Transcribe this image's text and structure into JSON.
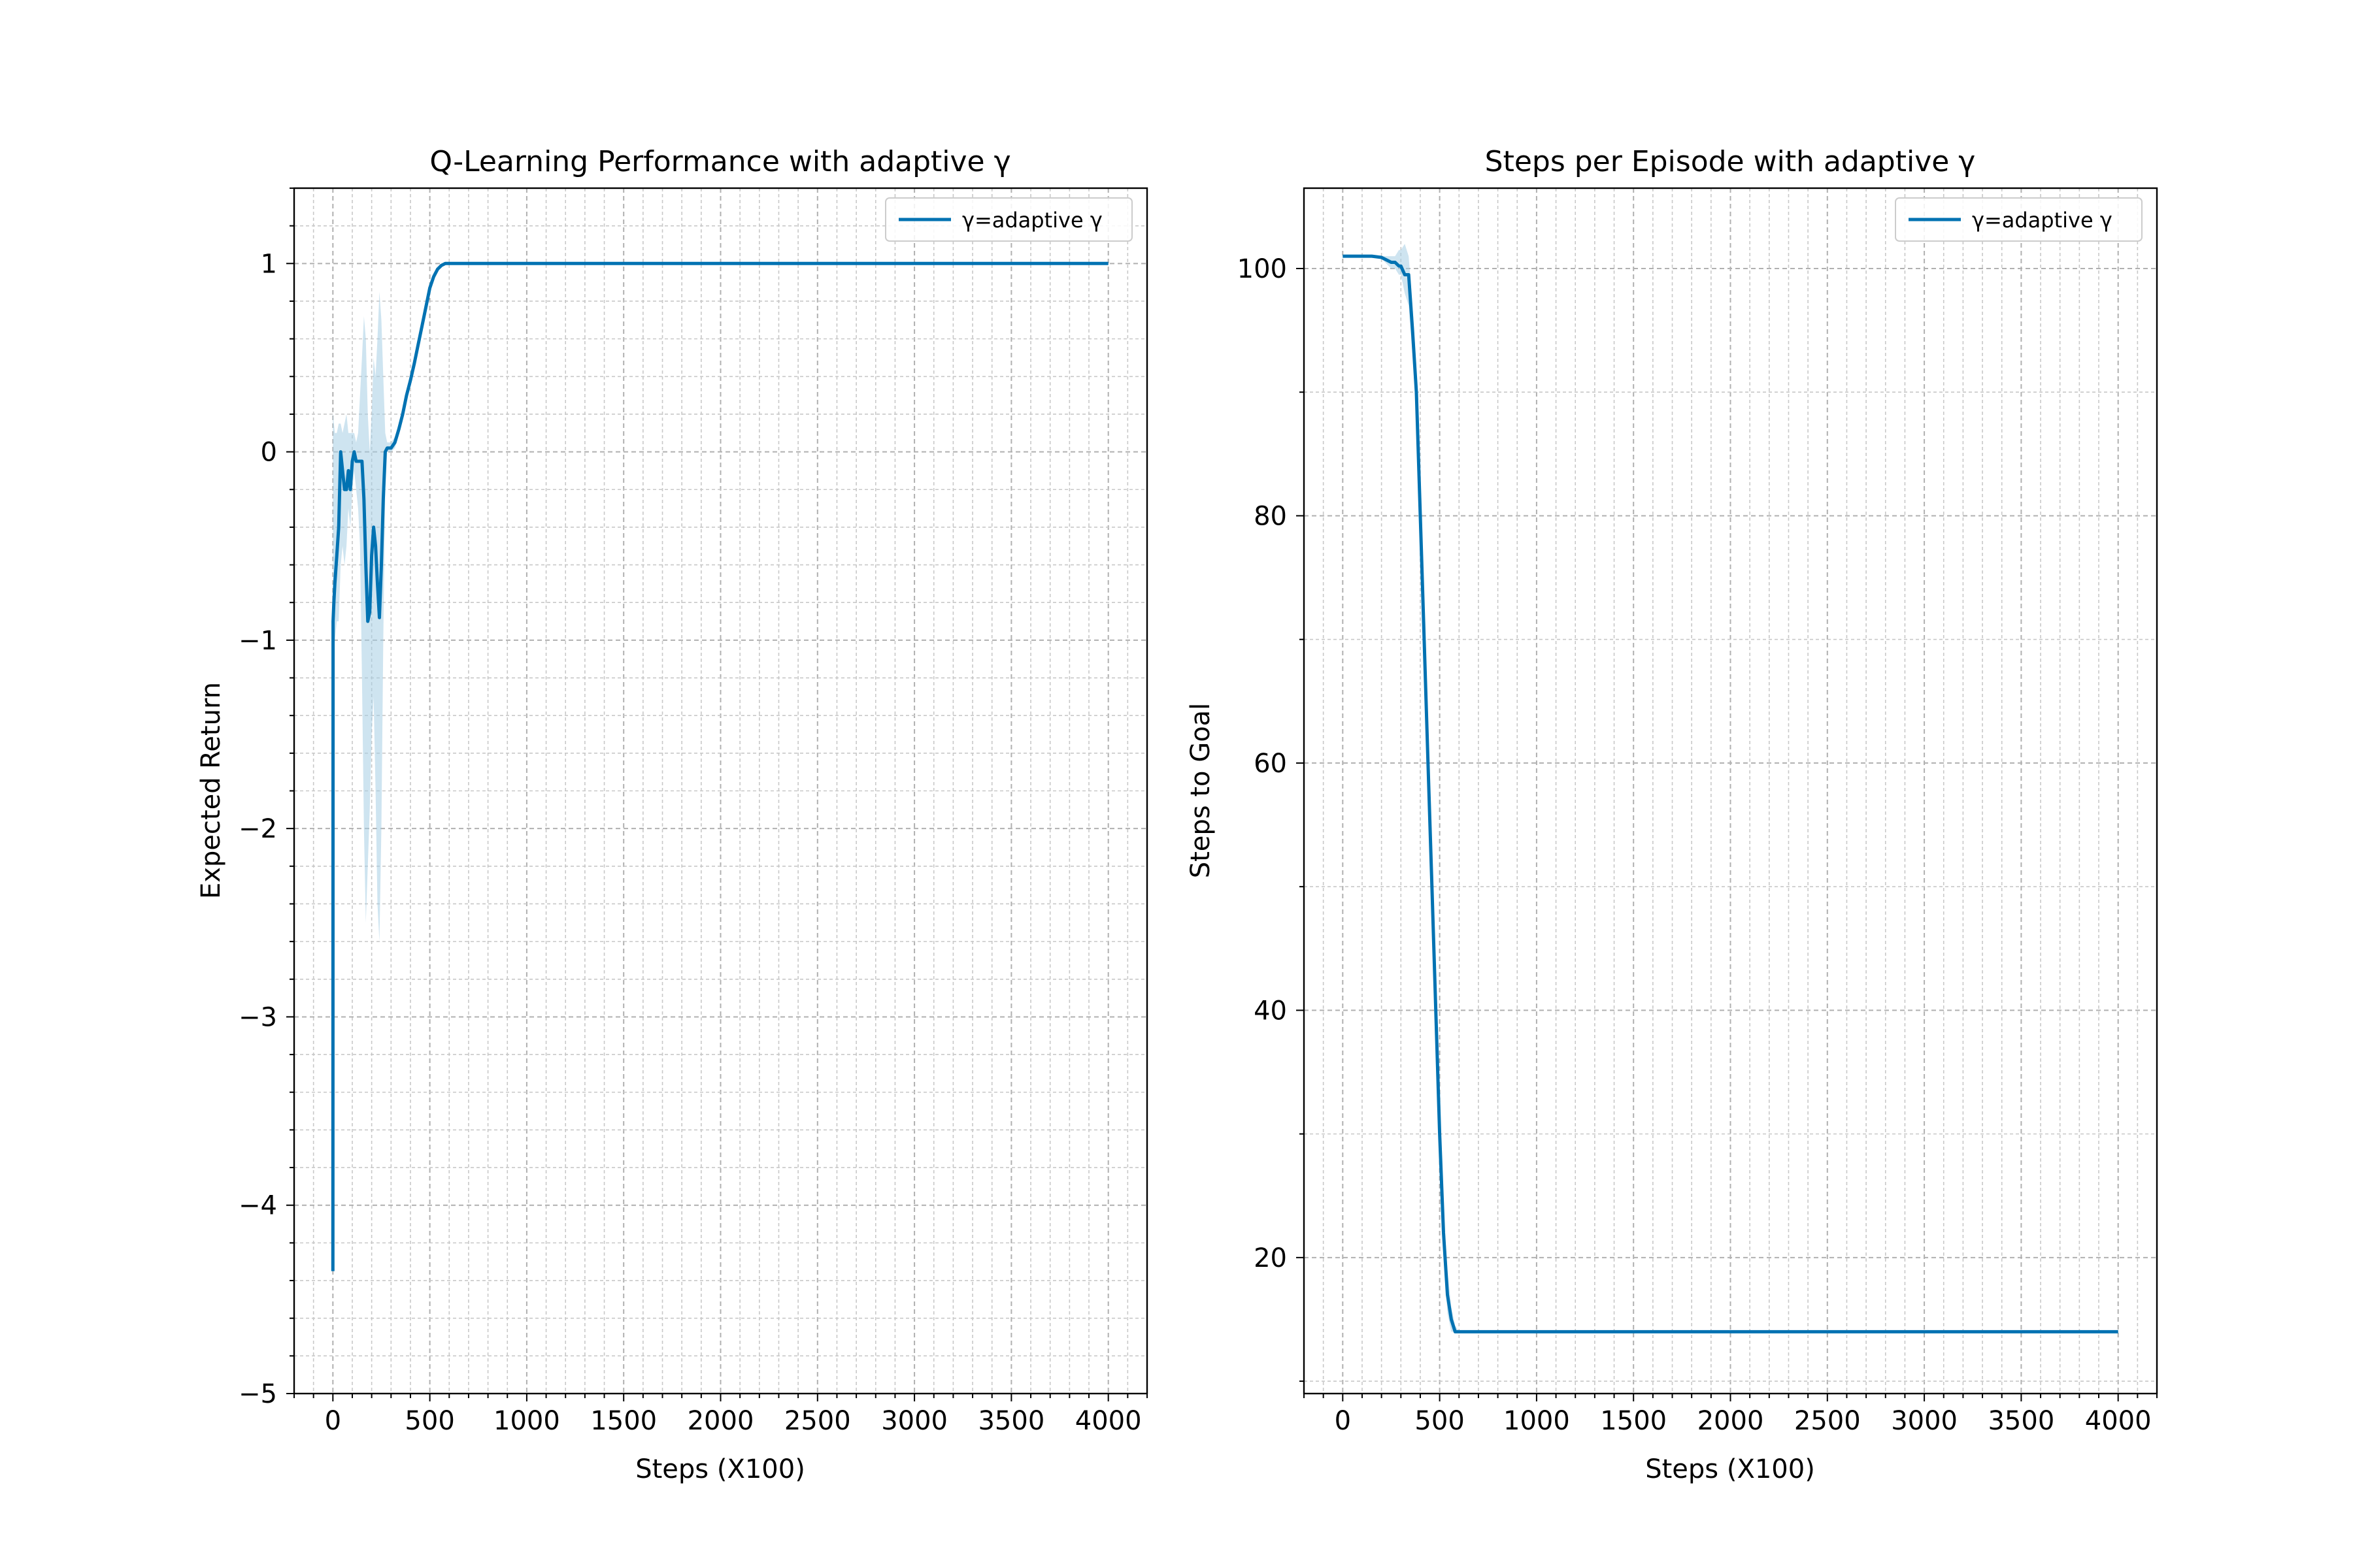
{
  "chart_data": [
    {
      "type": "line",
      "title": "Q-Learning Performance with adaptive γ",
      "xlabel": "Steps (X100)",
      "ylabel": "Expected Return",
      "xlim": [
        -200,
        4200
      ],
      "ylim": [
        -5,
        1.4
      ],
      "xticks": [
        "0",
        "500",
        "1000",
        "1500",
        "2000",
        "2500",
        "3000",
        "3500",
        "4000"
      ],
      "xtick_values": [
        0,
        500,
        1000,
        1500,
        2000,
        2500,
        3000,
        3500,
        4000
      ],
      "yticks": [
        "−5",
        "−4",
        "−3",
        "−2",
        "−1",
        "0",
        "1"
      ],
      "ytick_values": [
        -5,
        -4,
        -3,
        -2,
        -1,
        0,
        1
      ],
      "grid": true,
      "minor_ticks": true,
      "legend_position": "top-right",
      "colors": {
        "line": "#0072b2",
        "band": "#a6cee3"
      },
      "series": [
        {
          "name": "γ=adaptive γ",
          "x": [
            0,
            1,
            5,
            10,
            20,
            30,
            40,
            50,
            60,
            70,
            80,
            90,
            100,
            110,
            120,
            130,
            140,
            150,
            160,
            170,
            180,
            190,
            200,
            210,
            220,
            230,
            240,
            250,
            260,
            270,
            280,
            290,
            300,
            320,
            340,
            360,
            380,
            400,
            420,
            440,
            460,
            480,
            500,
            520,
            540,
            560,
            580,
            600,
            650,
            700,
            800,
            1000,
            1500,
            2000,
            2500,
            3000,
            3500,
            4000
          ],
          "y": [
            -4.35,
            -0.9,
            -0.8,
            -0.7,
            -0.55,
            -0.4,
            0.0,
            -0.1,
            -0.2,
            -0.2,
            -0.1,
            -0.2,
            -0.05,
            0.0,
            -0.05,
            -0.05,
            -0.05,
            -0.05,
            -0.25,
            -0.6,
            -0.9,
            -0.85,
            -0.55,
            -0.4,
            -0.5,
            -0.7,
            -0.88,
            -0.6,
            -0.25,
            0.0,
            0.02,
            0.02,
            0.02,
            0.05,
            0.12,
            0.2,
            0.3,
            0.38,
            0.47,
            0.57,
            0.67,
            0.77,
            0.87,
            0.93,
            0.97,
            0.99,
            1.0,
            1.0,
            1.0,
            1.0,
            1.0,
            1.0,
            1.0,
            1.0,
            1.0,
            1.0,
            1.0,
            1.0
          ],
          "band_upper": [
            0.2,
            0.2,
            0.15,
            0.1,
            0.1,
            0.15,
            0.15,
            0.1,
            0.15,
            0.2,
            0.1,
            0.1,
            0.1,
            0.1,
            0.05,
            0.1,
            0.3,
            0.5,
            0.72,
            0.6,
            0.2,
            0.0,
            0.2,
            0.5,
            0.4,
            0.6,
            0.85,
            0.7,
            0.4,
            0.1,
            0.05,
            0.05,
            0.05,
            0.08,
            0.15,
            0.23,
            0.33,
            0.41,
            0.5,
            0.6,
            0.7,
            0.8,
            0.9,
            0.95,
            0.98,
            1.0,
            1.0,
            1.0,
            1.0,
            1.0,
            1.0,
            1.0,
            1.0,
            1.0,
            1.0,
            1.0,
            1.0,
            1.0
          ],
          "band_lower": [
            -4.35,
            -1.0,
            -1.0,
            -1.0,
            -0.9,
            -0.9,
            -0.6,
            -0.5,
            -0.6,
            -0.5,
            -0.3,
            -0.4,
            -0.2,
            -0.1,
            -0.2,
            -0.3,
            -0.5,
            -1.2,
            -2.0,
            -2.5,
            -2.2,
            -1.9,
            -1.5,
            -1.3,
            -1.8,
            -2.4,
            -2.6,
            -2.0,
            -1.0,
            -0.2,
            0.0,
            0.0,
            0.0,
            0.02,
            0.09,
            0.17,
            0.27,
            0.35,
            0.44,
            0.54,
            0.64,
            0.74,
            0.84,
            0.91,
            0.96,
            0.98,
            1.0,
            1.0,
            1.0,
            1.0,
            1.0,
            1.0,
            1.0,
            1.0,
            1.0,
            1.0,
            1.0,
            1.0
          ]
        }
      ]
    },
    {
      "type": "line",
      "title": "Steps per Episode with adaptive γ",
      "xlabel": "Steps (X100)",
      "ylabel": "Steps to Goal",
      "xlim": [
        -200,
        4200
      ],
      "ylim": [
        9,
        106.5
      ],
      "xticks": [
        "0",
        "500",
        "1000",
        "1500",
        "2000",
        "2500",
        "3000",
        "3500",
        "4000"
      ],
      "xtick_values": [
        0,
        500,
        1000,
        1500,
        2000,
        2500,
        3000,
        3500,
        4000
      ],
      "yticks": [
        "20",
        "40",
        "60",
        "80",
        "100"
      ],
      "ytick_values": [
        20,
        40,
        60,
        80,
        100
      ],
      "grid": true,
      "minor_ticks": true,
      "legend_position": "top-right",
      "colors": {
        "line": "#0072b2",
        "band": "#a6cee3"
      },
      "series": [
        {
          "name": "γ=adaptive γ",
          "x": [
            0,
            50,
            100,
            150,
            200,
            250,
            270,
            290,
            300,
            320,
            340,
            360,
            380,
            400,
            420,
            440,
            460,
            480,
            500,
            520,
            540,
            560,
            580,
            600,
            650,
            700,
            1000,
            1500,
            2000,
            2500,
            3000,
            3500,
            4000
          ],
          "y": [
            101,
            101,
            101,
            101,
            100.9,
            100.5,
            100.5,
            100.2,
            100.2,
            99.5,
            99.5,
            95,
            90,
            80,
            70,
            60,
            50,
            40,
            30,
            22,
            17,
            15,
            14,
            14,
            14,
            14,
            14,
            14,
            14,
            14,
            14,
            14,
            14
          ],
          "band_upper": [
            101,
            101,
            101,
            101,
            101,
            101,
            101,
            101.5,
            101.5,
            102,
            101,
            97,
            92,
            82,
            72,
            62,
            52,
            42,
            32,
            24,
            19,
            16,
            14.5,
            14,
            14,
            14,
            14,
            14,
            14,
            14,
            14,
            14,
            14
          ],
          "band_lower": [
            101,
            101,
            101,
            101,
            100.8,
            100,
            100,
            99.5,
            99.5,
            98,
            97,
            93,
            88,
            78,
            68,
            58,
            48,
            38,
            28,
            20,
            15.5,
            14,
            14,
            14,
            14,
            14,
            14,
            14,
            14,
            14,
            14,
            14,
            14
          ]
        }
      ]
    }
  ]
}
